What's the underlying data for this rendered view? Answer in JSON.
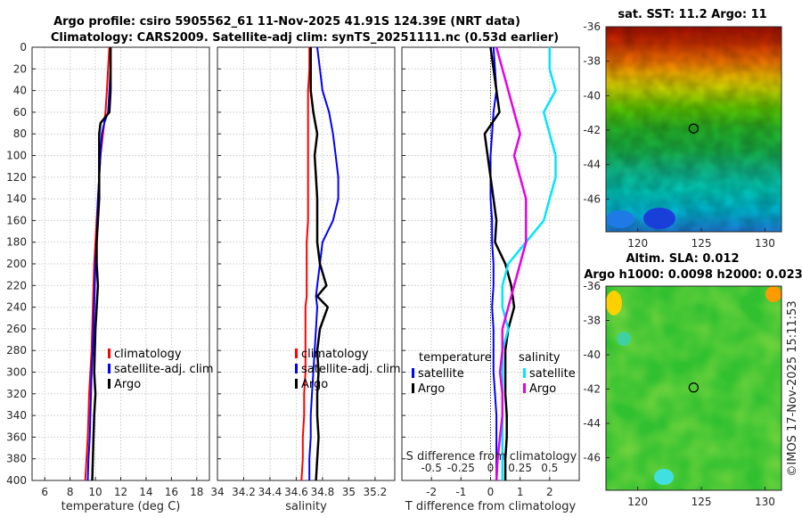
{
  "title": {
    "line1": "Argo profile: csiro 5905562_61 11-Nov-2025 41.91S 124.39E (NRT data)",
    "line2": "Climatology: CARS2009. Satellite-adj clim: synTS_20251111.nc (0.53d earlier)"
  },
  "credit": "©IMOS 17-Nov-2025 15:11:53",
  "colors": {
    "climatology": "#ff0000",
    "satellite": "#0000ff",
    "argo": "#000000",
    "salinity_satellite": "#00e5ff",
    "salinity_argo": "#e600e6",
    "grid": "#c8c8c8"
  },
  "chart_data": [
    {
      "id": "temperature",
      "type": "line",
      "xlabel": "temperature (deg C)",
      "ylabel": "",
      "xlim": [
        5,
        19
      ],
      "ylim": [
        400,
        0
      ],
      "xticks": [
        "6",
        "8",
        "10",
        "12",
        "14",
        "16",
        "18"
      ],
      "yticks": [
        "0",
        "20",
        "40",
        "60",
        "80",
        "100",
        "120",
        "140",
        "160",
        "180",
        "200",
        "220",
        "240",
        "260",
        "280",
        "300",
        "320",
        "340",
        "360",
        "380",
        "400"
      ],
      "depth": [
        0,
        20,
        40,
        60,
        70,
        80,
        100,
        120,
        140,
        160,
        180,
        200,
        220,
        240,
        260,
        280,
        300,
        320,
        340,
        360,
        380,
        400
      ],
      "series": [
        {
          "name": "climatology",
          "values": [
            11.1,
            11.0,
            10.9,
            10.8,
            10.7,
            10.6,
            10.4,
            10.3,
            10.2,
            10.1,
            10.0,
            9.9,
            9.85,
            9.8,
            9.75,
            9.7,
            9.6,
            9.5,
            9.45,
            9.4,
            9.3,
            9.2
          ]
        },
        {
          "name": "satellite-adj. clim",
          "values": [
            11.2,
            11.2,
            11.1,
            11.0,
            10.7,
            10.5,
            10.4,
            10.3,
            10.2,
            10.15,
            10.1,
            10.0,
            9.95,
            9.9,
            9.85,
            9.8,
            9.7,
            9.65,
            9.6,
            9.55,
            9.45,
            9.4
          ]
        },
        {
          "name": "Argo",
          "values": [
            11.2,
            11.2,
            11.2,
            11.1,
            10.4,
            10.3,
            10.3,
            10.3,
            10.3,
            10.2,
            10.1,
            10.1,
            10.2,
            10.1,
            10.0,
            9.95,
            9.9,
            10.0,
            9.9,
            9.85,
            9.8,
            9.75
          ]
        }
      ],
      "legend": [
        "climatology",
        "satellite-adj. clim",
        "Argo"
      ]
    },
    {
      "id": "salinity",
      "type": "line",
      "xlabel": "salinity",
      "ylabel": "",
      "xlim": [
        34,
        35.35
      ],
      "ylim": [
        400,
        0
      ],
      "xticks": [
        "34",
        "34.2",
        "34.4",
        "34.6",
        "34.8",
        "35",
        "35.2"
      ],
      "depth": [
        0,
        20,
        40,
        60,
        80,
        100,
        120,
        140,
        160,
        180,
        200,
        220,
        230,
        240,
        260,
        280,
        300,
        320,
        340,
        360,
        380,
        400
      ],
      "series": [
        {
          "name": "climatology",
          "values": [
            34.7,
            34.7,
            34.69,
            34.69,
            34.69,
            34.69,
            34.69,
            34.69,
            34.69,
            34.68,
            34.68,
            34.68,
            34.68,
            34.67,
            34.67,
            34.67,
            34.67,
            34.66,
            34.66,
            34.65,
            34.65,
            34.64
          ]
        },
        {
          "name": "satellite-adj. clim",
          "values": [
            34.76,
            34.78,
            34.8,
            34.85,
            34.88,
            34.9,
            34.92,
            34.92,
            34.88,
            34.8,
            34.78,
            34.76,
            34.75,
            34.76,
            34.75,
            34.74,
            34.73,
            34.72,
            34.71,
            34.71,
            34.7,
            34.7
          ]
        },
        {
          "name": "Argo",
          "values": [
            34.71,
            34.71,
            34.71,
            34.73,
            34.76,
            34.74,
            34.75,
            34.76,
            34.76,
            34.76,
            34.78,
            34.83,
            34.76,
            34.84,
            34.78,
            34.76,
            34.77,
            34.76,
            34.76,
            34.77,
            34.76,
            34.75
          ]
        }
      ],
      "legend": [
        "climatology",
        "satellite-adj. clim",
        "Argo"
      ]
    },
    {
      "id": "difference",
      "type": "line",
      "xlabel": "T difference from climatology",
      "xlabel_top": "S difference from climatology",
      "ylabel": "",
      "xlim": [
        -3,
        3
      ],
      "ylim": [
        400,
        0
      ],
      "xticks": [
        "-2",
        "-1",
        "0",
        "1",
        "2"
      ],
      "sticks": [
        "-0.5",
        "-0.25",
        "0",
        "0.25",
        "0.5"
      ],
      "depth": [
        0,
        20,
        40,
        60,
        80,
        100,
        120,
        140,
        160,
        180,
        200,
        220,
        240,
        260,
        280,
        300,
        320,
        340,
        360,
        380,
        400
      ],
      "series": [
        {
          "name": "temperature satellite",
          "values": [
            0.1,
            0.15,
            0.2,
            0.1,
            0.05,
            0.0,
            0.0,
            0.0,
            0.05,
            0.05,
            0.1,
            0.1,
            0.05,
            0.1,
            0.1,
            0.1,
            0.15,
            0.2,
            0.2,
            0.2,
            0.2
          ]
        },
        {
          "name": "temperature Argo",
          "values": [
            0.0,
            0.1,
            0.2,
            0.3,
            -0.2,
            -0.1,
            0.0,
            0.1,
            0.2,
            0.15,
            0.5,
            0.7,
            0.8,
            0.6,
            0.5,
            0.5,
            0.5,
            0.55,
            0.55,
            0.5,
            0.5
          ]
        },
        {
          "name": "salinity satellite",
          "values": [
            0.5,
            0.5,
            0.55,
            0.45,
            0.5,
            0.55,
            0.55,
            0.5,
            0.45,
            0.3,
            0.15,
            0.1,
            0.1,
            0.15,
            0.1,
            0.1,
            0.1,
            0.1,
            0.1,
            0.1,
            0.1
          ]
        },
        {
          "name": "salinity Argo",
          "values": [
            0.05,
            0.1,
            0.15,
            0.2,
            0.25,
            0.2,
            0.25,
            0.3,
            0.3,
            0.3,
            0.25,
            0.2,
            0.15,
            0.1,
            0.1,
            0.08,
            0.1,
            0.1,
            0.08,
            0.06,
            0.05
          ]
        }
      ],
      "legend_temp": {
        "title": "temperature",
        "items": [
          "satellite",
          "Argo"
        ]
      },
      "legend_sal": {
        "title": "salinity",
        "items": [
          "satellite",
          "Argo"
        ]
      }
    },
    {
      "id": "sst-map",
      "type": "heatmap",
      "title": "sat. SST: 11.2 Argo: 11",
      "xticks": [
        "120",
        "125",
        "130"
      ],
      "yticks": [
        "-36",
        "-38",
        "-40",
        "-42",
        "-44",
        "-46"
      ],
      "xlim": [
        117.5,
        131.3
      ],
      "ylim": [
        -47.9,
        -36
      ],
      "marker": {
        "lon": 124.39,
        "lat": -41.91
      }
    },
    {
      "id": "sla-map",
      "type": "heatmap",
      "title": "Altim. SLA: 0.012",
      "subtitle": "Argo h1000: 0.0098 h2000: 0.023",
      "xticks": [
        "120",
        "125",
        "130"
      ],
      "yticks": [
        "-36",
        "-38",
        "-40",
        "-42",
        "-44",
        "-46"
      ],
      "xlim": [
        117.5,
        131.3
      ],
      "ylim": [
        -47.9,
        -36
      ],
      "marker": {
        "lon": 124.39,
        "lat": -41.91
      }
    }
  ]
}
